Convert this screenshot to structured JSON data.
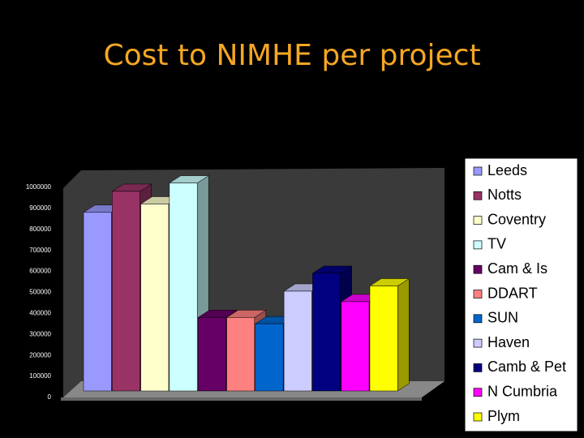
{
  "chart_data": {
    "type": "bar3d",
    "title": "Cost to NIMHE per project",
    "series": [
      {
        "name": "Leeds",
        "color": "#9999ff",
        "values": [
          850000
        ]
      },
      {
        "name": "Notts",
        "color": "#993366",
        "values": [
          950000
        ]
      },
      {
        "name": "Coventry",
        "color": "#ffffcc",
        "values": [
          890000
        ]
      },
      {
        "name": "TV",
        "color": "#ccffff",
        "values": [
          990000
        ]
      },
      {
        "name": "Cam & Is",
        "color": "#660066",
        "values": [
          350000
        ]
      },
      {
        "name": "DDART",
        "color": "#ff8080",
        "values": [
          350000
        ]
      },
      {
        "name": "SUN",
        "color": "#0066cc",
        "values": [
          320000
        ]
      },
      {
        "name": "Haven",
        "color": "#ccccff",
        "values": [
          475000
        ]
      },
      {
        "name": "Camb & Pet",
        "color": "#000080",
        "values": [
          560000
        ]
      },
      {
        "name": "N Cumbria",
        "color": "#ff00ff",
        "values": [
          425000
        ]
      },
      {
        "name": "Plym",
        "color": "#ffff00",
        "values": [
          500000
        ]
      }
    ],
    "ylim": [
      0,
      1000000
    ],
    "yticks": [
      0,
      100000,
      200000,
      300000,
      400000,
      500000,
      600000,
      700000,
      800000,
      900000,
      1000000
    ],
    "legend": "right"
  }
}
